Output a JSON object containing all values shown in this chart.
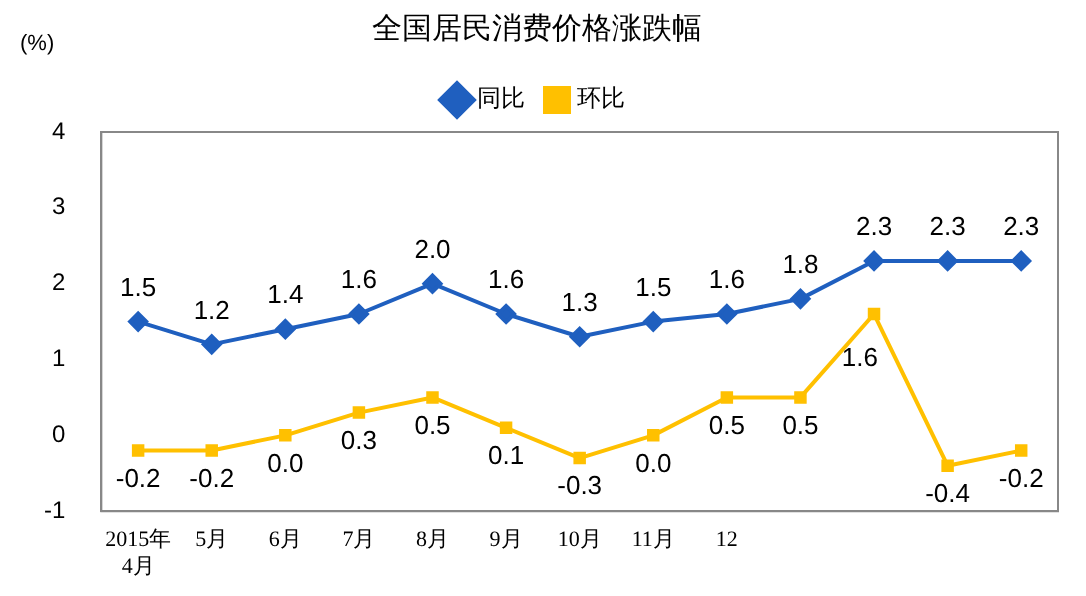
{
  "chart_data": {
    "type": "line",
    "title": "全国居民消费价格涨跌幅",
    "ylabel": "(%)",
    "categories": [
      "2015年\n4月",
      "5月",
      "6月",
      "7月",
      "8月",
      "9月",
      "10月",
      "11月",
      "12",
      null,
      null,
      null,
      null
    ],
    "series": [
      {
        "name": "同比",
        "color": "#1f5fbf",
        "marker": "diamond",
        "values": [
          1.5,
          1.2,
          1.4,
          1.6,
          2.0,
          1.6,
          1.3,
          1.5,
          1.6,
          1.8,
          2.3,
          2.3,
          2.3
        ],
        "value_labels": [
          "1.5",
          "1.2",
          "1.4",
          "1.6",
          "2.0",
          "1.6",
          "1.3",
          "1.5",
          "1.6",
          "1.8",
          "2.3",
          "2.3",
          "2.3"
        ]
      },
      {
        "name": "环比",
        "color": "#ffc000",
        "marker": "square",
        "values": [
          -0.2,
          -0.2,
          0.0,
          0.3,
          0.5,
          0.1,
          -0.3,
          0.0,
          0.5,
          0.5,
          1.6,
          -0.4,
          -0.2
        ],
        "value_labels": [
          "-0.2",
          "-0.2",
          "0.0",
          "0.3",
          "0.5",
          "0.1",
          "-0.3",
          "0.0",
          "0.5",
          "0.5",
          "1.6",
          "-0.4",
          "-0.2"
        ]
      }
    ],
    "ylim": [
      -1,
      4
    ],
    "yticks": [
      -1,
      0,
      1,
      2,
      3,
      4
    ],
    "grid": false,
    "legend": "top"
  }
}
